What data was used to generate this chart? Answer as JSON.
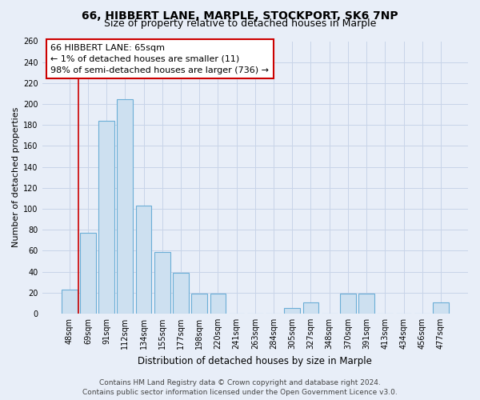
{
  "title": "66, HIBBERT LANE, MARPLE, STOCKPORT, SK6 7NP",
  "subtitle": "Size of property relative to detached houses in Marple",
  "xlabel": "Distribution of detached houses by size in Marple",
  "ylabel": "Number of detached properties",
  "bar_labels": [
    "48sqm",
    "69sqm",
    "91sqm",
    "112sqm",
    "134sqm",
    "155sqm",
    "177sqm",
    "198sqm",
    "220sqm",
    "241sqm",
    "263sqm",
    "284sqm",
    "305sqm",
    "327sqm",
    "348sqm",
    "370sqm",
    "391sqm",
    "413sqm",
    "434sqm",
    "456sqm",
    "477sqm"
  ],
  "bar_values": [
    23,
    77,
    184,
    205,
    103,
    59,
    39,
    19,
    19,
    0,
    0,
    0,
    5,
    11,
    0,
    19,
    19,
    0,
    0,
    0,
    11
  ],
  "bar_color": "#cde0f0",
  "bar_edge_color": "#6baed6",
  "highlight_bar_index": 1,
  "red_line_x": 1.0,
  "annotation_box_text": "66 HIBBERT LANE: 65sqm\n← 1% of detached houses are smaller (11)\n98% of semi-detached houses are larger (736) →",
  "ylim": [
    0,
    260
  ],
  "yticks": [
    0,
    20,
    40,
    60,
    80,
    100,
    120,
    140,
    160,
    180,
    200,
    220,
    240,
    260
  ],
  "grid_color": "#c8d4e8",
  "background_color": "#e8eef8",
  "footer_line1": "Contains HM Land Registry data © Crown copyright and database right 2024.",
  "footer_line2": "Contains public sector information licensed under the Open Government Licence v3.0.",
  "title_fontsize": 10,
  "subtitle_fontsize": 9,
  "xlabel_fontsize": 8.5,
  "ylabel_fontsize": 8,
  "tick_fontsize": 7,
  "annotation_fontsize": 8,
  "footer_fontsize": 6.5
}
